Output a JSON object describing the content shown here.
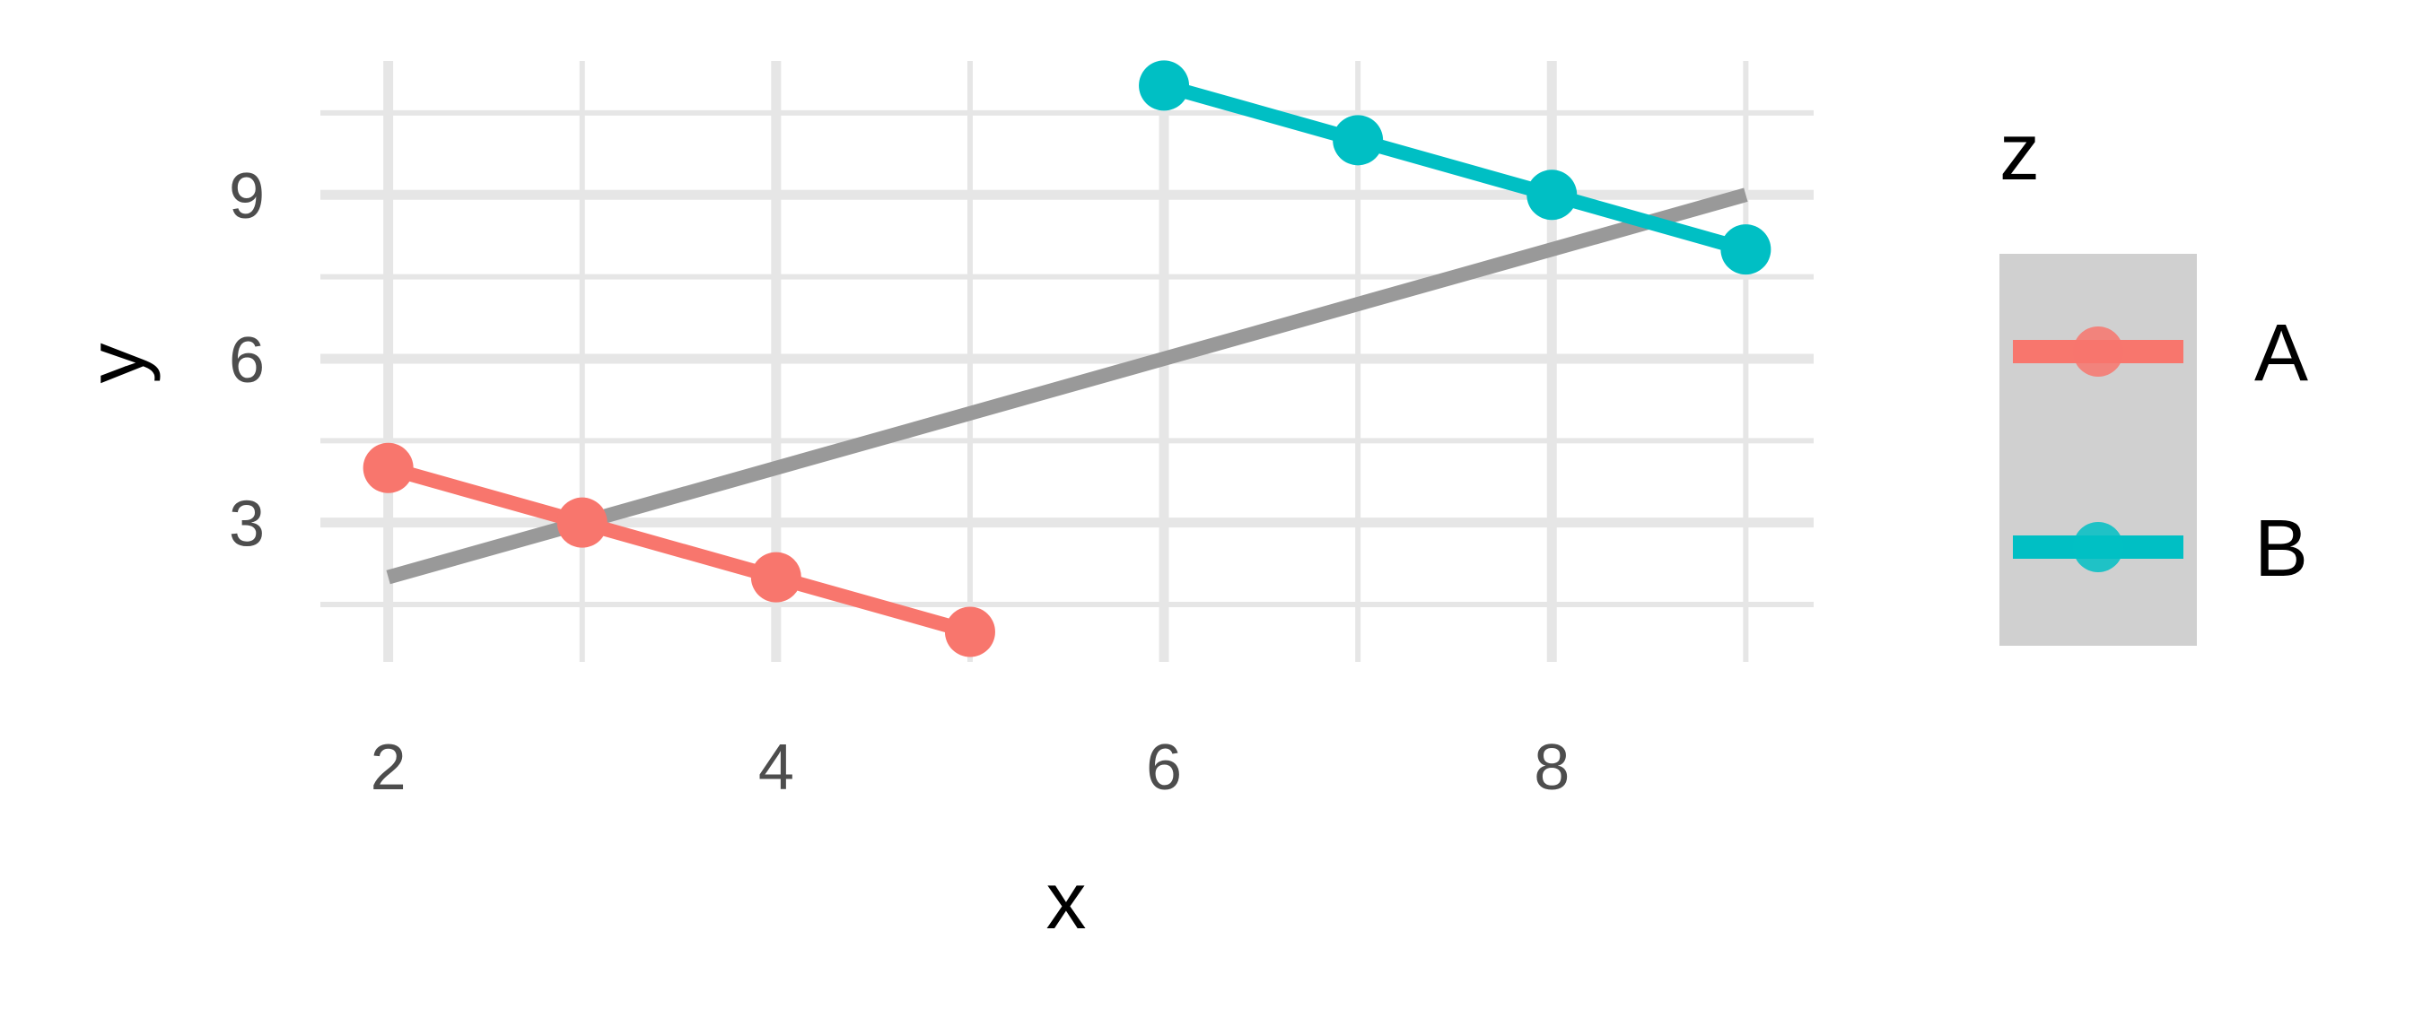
{
  "chart_data": {
    "type": "line",
    "xlabel": "x",
    "ylabel": "y",
    "xlim": [
      1.65,
      9.35
    ],
    "ylim": [
      0.45,
      11.45
    ],
    "x_ticks": [
      2,
      4,
      6,
      8
    ],
    "y_ticks": [
      3,
      6,
      9
    ],
    "x_ticks_labels": [
      "2",
      "4",
      "6",
      "8"
    ],
    "y_ticks_labels": [
      "3",
      "6",
      "9"
    ],
    "grid": true,
    "series": [
      {
        "name": "A",
        "color": "#F8766D",
        "markers": true,
        "x": [
          2,
          3,
          4,
          5
        ],
        "y": [
          4,
          3,
          2,
          1
        ]
      },
      {
        "name": "B",
        "color": "#00BFC4",
        "markers": true,
        "x": [
          6,
          7,
          8,
          9
        ],
        "y": [
          11,
          10,
          9,
          8
        ]
      }
    ],
    "reference_line": {
      "color": "#999999",
      "x": [
        2,
        9
      ],
      "y": [
        2,
        9
      ]
    },
    "legend": {
      "title": "z",
      "position": "right",
      "entries": [
        "A",
        "B"
      ]
    }
  }
}
